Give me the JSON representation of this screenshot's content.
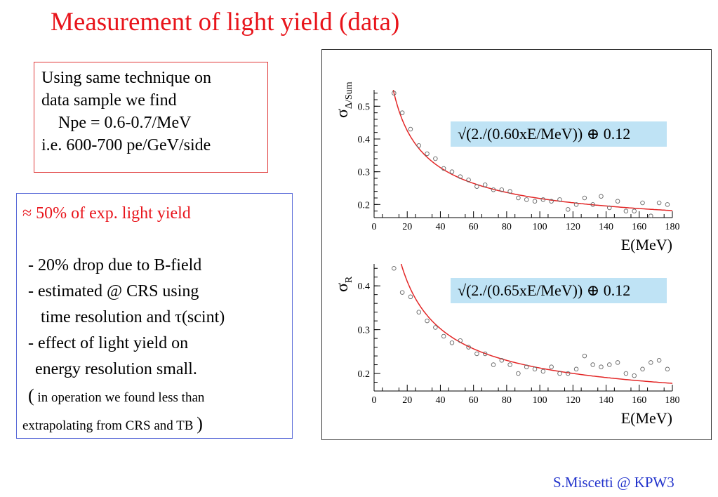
{
  "title": "Measurement of light yield (data)",
  "box1": {
    "lines": [
      "Using same technique on",
      "data sample we find",
      "Npe = 0.6-0.7/MeV",
      "i.e. 600-700 pe/GeV/side"
    ]
  },
  "box2": {
    "headline": "≈ 50% of exp. light yield",
    "b1": "- 20% drop due to B-field",
    "b2a": "- estimated @ CRS using",
    "b2b": "time resolution and τ(scint)",
    "b3a": "- effect of light yield on",
    "b3b": "energy resolution small.",
    "paren_open": "(",
    "n1": " in operation we found less than",
    "n2": "extrapolating from  CRS and TB ",
    "paren_close": ")"
  },
  "footer": "S.Miscetti @ KPW3",
  "colors": {
    "title": "#e8141b",
    "footer": "#2233cc",
    "fit_line": "#e32626",
    "formula_bg": "#bfe3f5",
    "box1_border": "#e03a3a",
    "box2_border": "#5a6bd8"
  },
  "chart_data": [
    {
      "type": "scatter",
      "ylabel_main": "σ",
      "ylabel_sub": "Δ/Sum",
      "xlabel": "E(MeV)",
      "xlim": [
        0,
        180
      ],
      "ylim": [
        0.16,
        0.55
      ],
      "xticks": [
        0,
        20,
        40,
        60,
        80,
        100,
        120,
        140,
        160,
        180
      ],
      "yticks": [
        0.2,
        0.3,
        0.4,
        0.5
      ],
      "formula": "√(2./(0.60xE/MeV)) ⊕ 0.12",
      "fit": {
        "a": 0.6,
        "c": 0.12
      },
      "x": [
        12,
        17,
        22,
        27,
        32,
        37,
        42,
        47,
        52,
        57,
        62,
        67,
        72,
        77,
        82,
        87,
        92,
        97,
        102,
        107,
        112,
        117,
        122,
        127,
        132,
        137,
        142,
        147,
        152,
        157,
        162,
        167,
        172,
        177
      ],
      "y": [
        0.54,
        0.48,
        0.43,
        0.38,
        0.355,
        0.34,
        0.31,
        0.3,
        0.285,
        0.275,
        0.255,
        0.26,
        0.245,
        0.245,
        0.24,
        0.22,
        0.215,
        0.21,
        0.215,
        0.21,
        0.215,
        0.185,
        0.2,
        0.22,
        0.2,
        0.225,
        0.19,
        0.21,
        0.18,
        0.18,
        0.205,
        0.165,
        0.205,
        0.2
      ]
    },
    {
      "type": "scatter",
      "ylabel_main": "σ",
      "ylabel_sub": "R",
      "xlabel": "E(MeV)",
      "xlim": [
        0,
        180
      ],
      "ylim": [
        0.16,
        0.45
      ],
      "xticks": [
        0,
        20,
        40,
        60,
        80,
        100,
        120,
        140,
        160,
        180
      ],
      "yticks": [
        0.2,
        0.3,
        0.4
      ],
      "formula": "√(2./(0.65xE/MeV)) ⊕ 0.12",
      "fit": {
        "a": 0.65,
        "c": 0.12
      },
      "x": [
        12,
        17,
        22,
        27,
        32,
        37,
        42,
        47,
        52,
        57,
        62,
        67,
        72,
        77,
        82,
        87,
        92,
        97,
        102,
        107,
        112,
        117,
        122,
        127,
        132,
        137,
        142,
        147,
        152,
        157,
        162,
        167,
        172,
        177
      ],
      "y": [
        0.44,
        0.385,
        0.375,
        0.34,
        0.32,
        0.305,
        0.285,
        0.27,
        0.275,
        0.26,
        0.245,
        0.245,
        0.22,
        0.23,
        0.22,
        0.2,
        0.215,
        0.21,
        0.205,
        0.215,
        0.2,
        0.2,
        0.21,
        0.24,
        0.22,
        0.215,
        0.22,
        0.225,
        0.2,
        0.195,
        0.21,
        0.225,
        0.23,
        0.21
      ]
    }
  ]
}
